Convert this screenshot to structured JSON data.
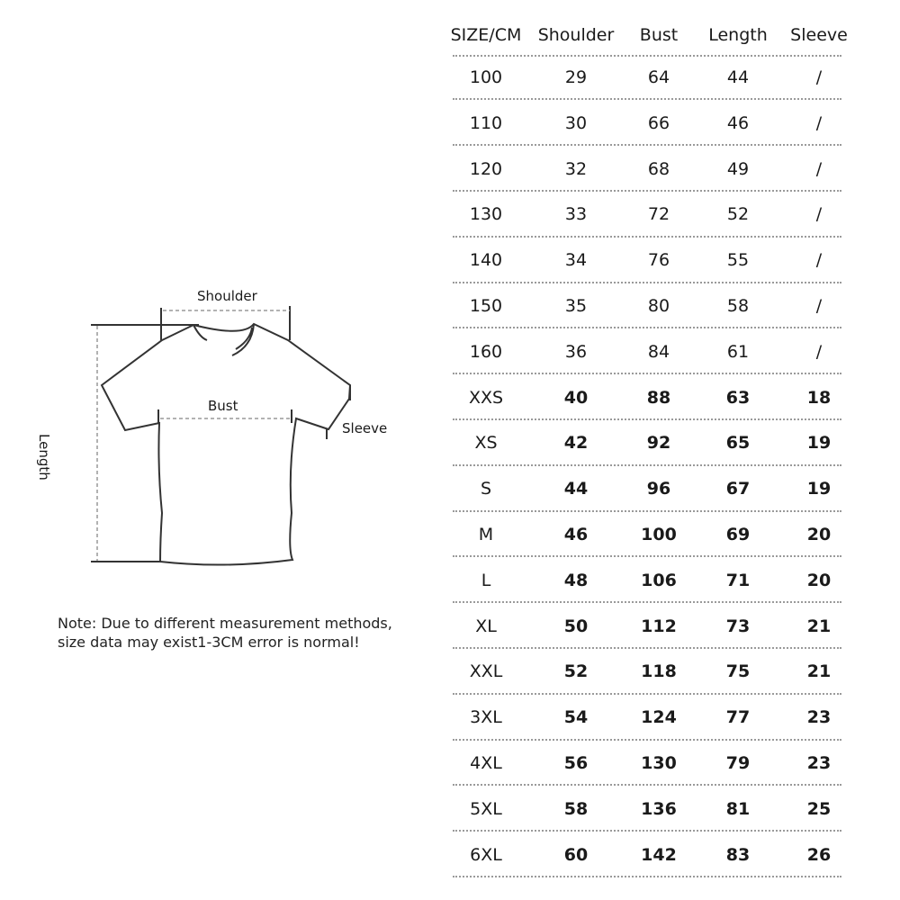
{
  "table": {
    "headers": [
      "SIZE/CM",
      "Shoulder",
      "Bust",
      "Length",
      "Sleeve"
    ],
    "rows": [
      [
        "100",
        "29",
        "64",
        "44",
        "/"
      ],
      [
        "110",
        "30",
        "66",
        "46",
        "/"
      ],
      [
        "120",
        "32",
        "68",
        "49",
        "/"
      ],
      [
        "130",
        "33",
        "72",
        "52",
        "/"
      ],
      [
        "140",
        "34",
        "76",
        "55",
        "/"
      ],
      [
        "150",
        "35",
        "80",
        "58",
        "/"
      ],
      [
        "160",
        "36",
        "84",
        "61",
        "/"
      ],
      [
        "XXS",
        "40",
        "88",
        "63",
        "18"
      ],
      [
        "XS",
        "42",
        "92",
        "65",
        "19"
      ],
      [
        "S",
        "44",
        "96",
        "67",
        "19"
      ],
      [
        "M",
        "46",
        "100",
        "69",
        "20"
      ],
      [
        "L",
        "48",
        "106",
        "71",
        "20"
      ],
      [
        "XL",
        "50",
        "112",
        "73",
        "21"
      ],
      [
        "XXL",
        "52",
        "118",
        "75",
        "21"
      ],
      [
        "3XL",
        "54",
        "124",
        "77",
        "23"
      ],
      [
        "4XL",
        "56",
        "130",
        "79",
        "23"
      ],
      [
        "5XL",
        "58",
        "136",
        "81",
        "25"
      ],
      [
        "6XL",
        "60",
        "142",
        "83",
        "26"
      ]
    ]
  },
  "diagram": {
    "shoulder_label": "Shoulder",
    "bust_label": "Bust",
    "sleeve_label": "Sleeve",
    "length_label": "Length"
  },
  "note": {
    "line1": "Note: Due to different measurement methods,",
    "line2": "size data may exist1-3CM error is normal!"
  }
}
